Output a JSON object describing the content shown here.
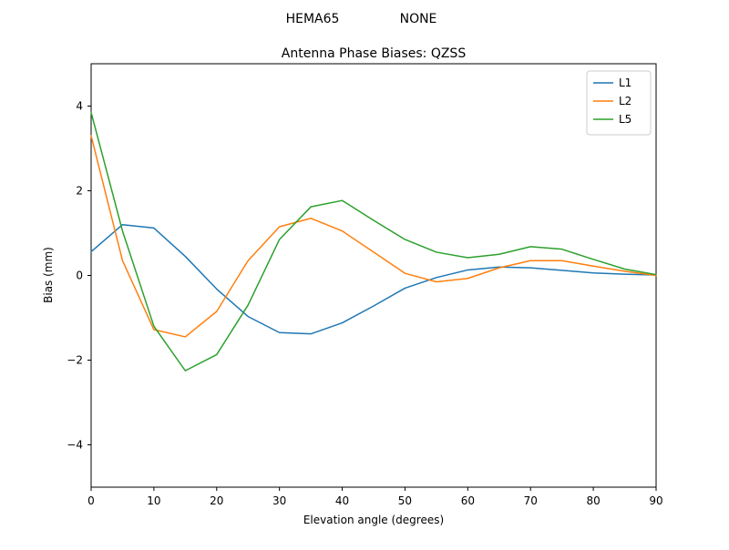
{
  "page": {
    "background": "#ffffff"
  },
  "chart_data": {
    "type": "line",
    "suptitle_left": "HEMA65",
    "suptitle_right": "NONE",
    "title": "Antenna Phase Biases: QZSS",
    "xlabel": "Elevation angle (degrees)",
    "ylabel": "Bias (mm)",
    "xlim": [
      0,
      90
    ],
    "ylim": [
      -5,
      5
    ],
    "grid": false,
    "x_ticks": [
      {
        "value": 0,
        "label": "0"
      },
      {
        "value": 10,
        "label": "10"
      },
      {
        "value": 20,
        "label": "20"
      },
      {
        "value": 30,
        "label": "30"
      },
      {
        "value": 40,
        "label": "40"
      },
      {
        "value": 50,
        "label": "50"
      },
      {
        "value": 60,
        "label": "60"
      },
      {
        "value": 70,
        "label": "70"
      },
      {
        "value": 80,
        "label": "80"
      },
      {
        "value": 90,
        "label": "90"
      }
    ],
    "y_ticks": [
      {
        "value": -4,
        "label": "−4"
      },
      {
        "value": -2,
        "label": "−2"
      },
      {
        "value": 0,
        "label": "0"
      },
      {
        "value": 2,
        "label": "2"
      },
      {
        "value": 4,
        "label": "4"
      }
    ],
    "x": [
      0,
      5,
      10,
      15,
      20,
      25,
      30,
      35,
      40,
      45,
      50,
      55,
      60,
      65,
      70,
      75,
      80,
      85,
      90
    ],
    "series": [
      {
        "name": "L1",
        "color": "#1f77b4",
        "values": [
          0.56,
          1.2,
          1.12,
          0.45,
          -0.32,
          -0.97,
          -1.35,
          -1.38,
          -1.12,
          -0.72,
          -0.3,
          -0.05,
          0.13,
          0.2,
          0.18,
          0.12,
          0.06,
          0.03,
          0.01
        ]
      },
      {
        "name": "L2",
        "color": "#ff7f0e",
        "values": [
          3.3,
          0.35,
          -1.28,
          -1.45,
          -0.85,
          0.35,
          1.15,
          1.35,
          1.05,
          0.55,
          0.05,
          -0.15,
          -0.07,
          0.18,
          0.35,
          0.35,
          0.22,
          0.1,
          0.0
        ]
      },
      {
        "name": "L5",
        "color": "#2ca02c",
        "values": [
          3.85,
          1.05,
          -1.2,
          -2.25,
          -1.87,
          -0.7,
          0.85,
          1.62,
          1.77,
          1.3,
          0.85,
          0.55,
          0.42,
          0.5,
          0.68,
          0.62,
          0.38,
          0.15,
          0.02
        ]
      }
    ],
    "legend": {
      "position": "upper right",
      "entries": [
        "L1",
        "L2",
        "L5"
      ]
    }
  }
}
